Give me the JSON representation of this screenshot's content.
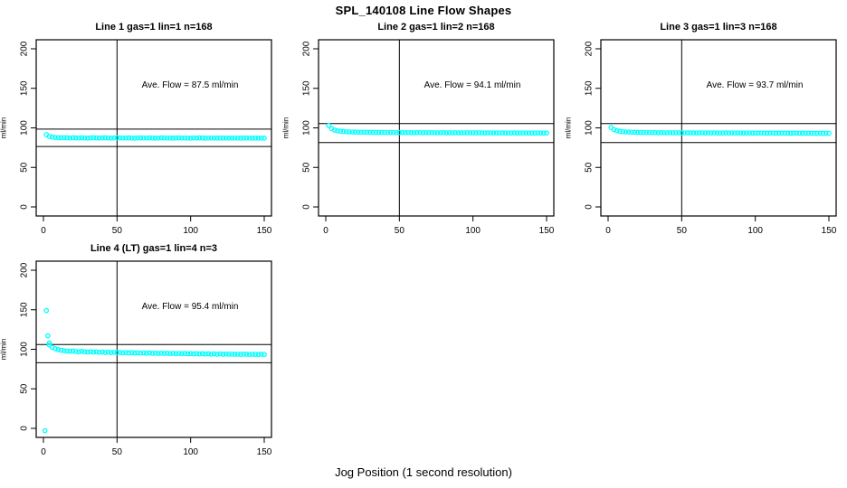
{
  "page_title": "SPL_140108  Line Flow Shapes",
  "xlabel": "Jog Position (1 second resolution)",
  "colors": {
    "points": "#00ffff",
    "axis": "#000000",
    "background": "#ffffff"
  },
  "chart_data": [
    {
      "type": "scatter",
      "title": "Line 1 gas=1 lin=1 n=168",
      "ylabel": "ml/min",
      "annotation": "Ave. Flow =  87.5  ml/min",
      "ave_flow_ml_min": 87.5,
      "xlim": [
        0,
        150
      ],
      "ylim": [
        0,
        200
      ],
      "xticks": [
        0,
        50,
        100,
        150
      ],
      "yticks": [
        0,
        50,
        100,
        150,
        200
      ],
      "grid": false,
      "vline_x": 50,
      "hlines": [
        98.5,
        76.5
      ],
      "x_start": 2,
      "x_step": 2,
      "y": [
        91.5,
        89.2,
        88.3,
        87.9,
        87.6,
        87.5,
        87.6,
        87.4,
        87.2,
        87.5,
        87.3,
        87.1,
        87.4,
        87.2,
        87.0,
        87.3,
        87.5,
        87.2,
        87.1,
        87.3,
        87.4,
        87.2,
        87.0,
        87.2,
        87.4,
        87.3,
        87.1,
        87.2,
        87.3,
        87.1,
        87.0,
        87.2,
        87.3,
        87.2,
        87.1,
        87.3,
        87.2,
        87.0,
        87.1,
        87.3,
        87.2,
        87.1,
        87.2,
        87.0,
        87.2,
        87.3,
        87.1,
        87.2,
        87.1,
        87.0,
        87.2,
        87.1,
        87.3,
        87.2,
        87.0,
        87.1,
        87.2,
        87.1,
        87.0,
        87.2,
        87.1,
        87.2,
        87.0,
        87.1,
        87.2,
        87.1,
        87.0,
        87.1,
        87.2,
        87.1,
        87.0,
        87.1,
        87.0,
        87.1,
        87.0
      ],
      "extra_points": []
    },
    {
      "type": "scatter",
      "title": "Line 2 gas=1 lin=2 n=168",
      "ylabel": "ml/min",
      "annotation": "Ave. Flow =  94.1  ml/min",
      "ave_flow_ml_min": 94.1,
      "xlim": [
        0,
        150
      ],
      "ylim": [
        0,
        200
      ],
      "xticks": [
        0,
        50,
        100,
        150
      ],
      "yticks": [
        0,
        50,
        100,
        150,
        200
      ],
      "grid": false,
      "vline_x": 50,
      "hlines": [
        105.5,
        81.5
      ],
      "x_start": 2,
      "x_step": 2,
      "y": [
        103.0,
        99.0,
        97.2,
        96.3,
        95.8,
        95.4,
        95.1,
        94.9,
        94.8,
        94.7,
        94.6,
        94.5,
        94.5,
        94.4,
        94.4,
        94.3,
        94.3,
        94.2,
        94.3,
        94.2,
        94.1,
        94.2,
        94.1,
        94.0,
        94.1,
        94.2,
        94.0,
        94.1,
        94.0,
        93.9,
        94.0,
        94.1,
        93.9,
        94.0,
        93.9,
        94.0,
        93.9,
        93.8,
        93.9,
        94.0,
        93.8,
        93.9,
        93.8,
        93.9,
        93.8,
        93.7,
        93.8,
        93.9,
        93.7,
        93.8,
        93.7,
        93.8,
        93.7,
        93.6,
        93.7,
        93.8,
        93.6,
        93.7,
        93.6,
        93.7,
        93.6,
        93.5,
        93.6,
        93.7,
        93.5,
        93.6,
        93.5,
        93.6,
        93.5,
        93.4,
        93.5,
        93.6,
        93.4,
        93.5,
        93.4
      ],
      "extra_points": []
    },
    {
      "type": "scatter",
      "title": "Line 3 gas=1 lin=3 n=168",
      "ylabel": "ml/min",
      "annotation": "Ave. Flow =  93.7  ml/min",
      "ave_flow_ml_min": 93.7,
      "xlim": [
        0,
        150
      ],
      "ylim": [
        0,
        200
      ],
      "xticks": [
        0,
        50,
        100,
        150
      ],
      "yticks": [
        0,
        50,
        100,
        150,
        200
      ],
      "grid": false,
      "vline_x": 50,
      "hlines": [
        105.5,
        81.5
      ],
      "x_start": 2,
      "x_step": 2,
      "y": [
        100.5,
        97.8,
        96.4,
        95.7,
        95.2,
        94.9,
        94.7,
        94.5,
        94.4,
        94.3,
        94.2,
        94.2,
        94.1,
        94.1,
        94.0,
        94.0,
        93.9,
        94.0,
        93.9,
        93.8,
        93.9,
        93.8,
        93.9,
        93.8,
        93.7,
        93.8,
        93.7,
        93.8,
        93.7,
        93.6,
        93.7,
        93.8,
        93.6,
        93.7,
        93.6,
        93.7,
        93.6,
        93.5,
        93.6,
        93.7,
        93.5,
        93.6,
        93.5,
        93.6,
        93.5,
        93.4,
        93.5,
        93.6,
        93.4,
        93.5,
        93.4,
        93.5,
        93.4,
        93.3,
        93.4,
        93.5,
        93.3,
        93.4,
        93.3,
        93.4,
        93.3,
        93.2,
        93.3,
        93.4,
        93.2,
        93.3,
        93.2,
        93.3,
        93.2,
        93.1,
        93.2,
        93.3,
        93.1,
        93.2,
        93.1
      ],
      "extra_points": []
    },
    {
      "type": "scatter",
      "title": "Line 4 (LT) gas=1 lin=4 n=3",
      "ylabel": "ml/min",
      "annotation": "Ave. Flow =  95.4  ml/min",
      "ave_flow_ml_min": 95.4,
      "xlim": [
        0,
        150
      ],
      "ylim": [
        0,
        200
      ],
      "xticks": [
        0,
        50,
        100,
        150
      ],
      "yticks": [
        0,
        50,
        100,
        150,
        200
      ],
      "grid": false,
      "vline_x": 50,
      "hlines": [
        106.0,
        83.0
      ],
      "x_start": 4,
      "x_step": 2,
      "y": [
        105.5,
        102.5,
        100.8,
        99.6,
        98.8,
        98.2,
        97.8,
        97.5,
        97.9,
        97.2,
        96.8,
        97.4,
        96.9,
        96.5,
        97.0,
        96.4,
        96.8,
        96.2,
        96.6,
        96.0,
        96.4,
        95.8,
        96.2,
        95.7,
        96.0,
        95.5,
        95.9,
        95.4,
        95.8,
        95.3,
        95.6,
        95.1,
        95.5,
        95.0,
        95.4,
        94.9,
        95.2,
        94.8,
        95.1,
        94.7,
        95.0,
        94.6,
        94.9,
        94.5,
        94.8,
        94.4,
        94.7,
        94.3,
        94.6,
        94.2,
        94.5,
        94.1,
        94.4,
        94.0,
        94.3,
        93.9,
        94.2,
        93.8,
        94.1,
        93.7,
        94.0,
        93.8,
        93.9,
        93.7,
        93.8,
        93.6,
        93.9,
        93.7,
        93.5,
        93.8,
        93.6,
        93.4,
        93.7,
        93.5
      ],
      "extra_points": [
        {
          "x": 2,
          "y": 149.0
        },
        {
          "x": 3,
          "y": 117.0
        },
        {
          "x": 4,
          "y": 108.0
        },
        {
          "x": 1,
          "y": -3.0
        }
      ]
    }
  ]
}
